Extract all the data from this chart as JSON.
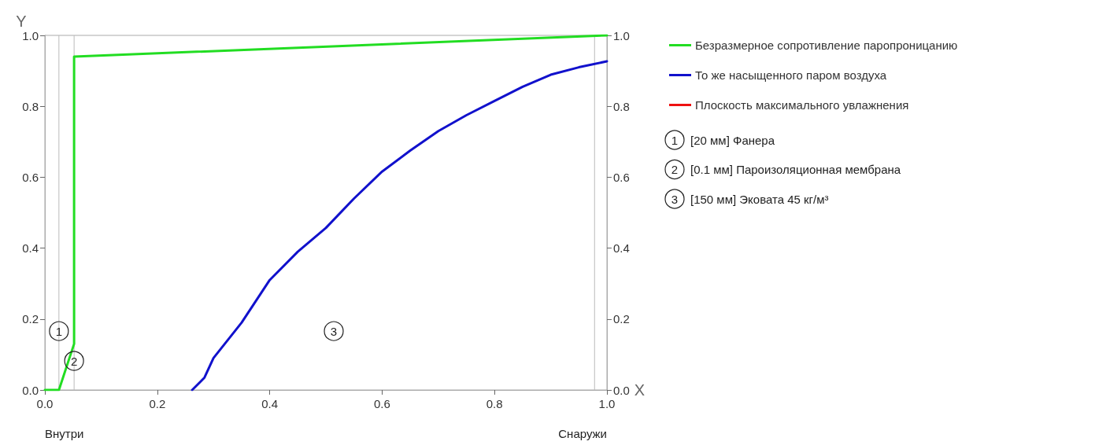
{
  "chart_data": {
    "type": "line",
    "xlabel": "X",
    "ylabel": "Y",
    "xlim": [
      0,
      1
    ],
    "xticks": [
      {
        "value": 0,
        "label": "0.0"
      },
      {
        "value": 0.2,
        "label": "0.2"
      },
      {
        "value": 0.4,
        "label": "0.4"
      },
      {
        "value": 0.6,
        "label": "0.6"
      },
      {
        "value": 0.8,
        "label": "0.8"
      },
      {
        "value": 1,
        "label": "1.0"
      }
    ],
    "ylim": [
      0,
      1
    ],
    "yticks": [
      {
        "value": 0,
        "label": "0.0"
      },
      {
        "value": 0.2,
        "label": "0.2"
      },
      {
        "value": 0.4,
        "label": "0.4"
      },
      {
        "value": 0.6,
        "label": "0.6"
      },
      {
        "value": 0.8,
        "label": "0.8"
      },
      {
        "value": 1,
        "label": "1.0"
      }
    ],
    "y2lim": [
      0,
      1
    ],
    "y2ticks": [
      {
        "value": 0,
        "label": "0.0"
      },
      {
        "value": 0.2,
        "label": "0.2"
      },
      {
        "value": 0.4,
        "label": "0.4"
      },
      {
        "value": 0.6,
        "label": "0.6"
      },
      {
        "value": 0.8,
        "label": "0.8"
      },
      {
        "value": 1,
        "label": "1.0"
      }
    ],
    "series": [
      {
        "name": "Безразмерное сопротивление паропроницанию",
        "color": "#22dd22",
        "x": [
          0,
          0.025,
          0.052,
          0.052,
          1.0
        ],
        "values": [
          0,
          0,
          0.13,
          0.94,
          1.0
        ]
      },
      {
        "name": "То же насыщенного паром воздуха",
        "color": "#1111cc",
        "x": [
          0.262,
          0.284,
          0.3,
          0.35,
          0.4,
          0.45,
          0.5,
          0.55,
          0.6,
          0.65,
          0.7,
          0.75,
          0.8,
          0.85,
          0.9,
          0.95,
          1.0
        ],
        "values": [
          0,
          0.035,
          0.09,
          0.19,
          0.31,
          0.39,
          0.457,
          0.54,
          0.616,
          0.675,
          0.73,
          0.775,
          0.815,
          0.855,
          0.889,
          0.91,
          0.927
        ]
      },
      {
        "name": "Плоскость максимального увлажнения",
        "color": "#ee1111"
      }
    ],
    "ref_lines": [
      {
        "axis": "x",
        "value": 0.025,
        "color": "#bbbbbb"
      },
      {
        "axis": "x",
        "value": 0.052,
        "color": "#bbbbbb"
      },
      {
        "axis": "x",
        "value": 0.978,
        "color": "#bbbbbb"
      }
    ],
    "annotations": [
      "Внутри",
      "Снаружи",
      "1 [20 мм] Фанера",
      "2 [0.1 мм] Пароизоляционная мембрана",
      "3 [150 мм] Эковата 45 кг/м³",
      {
        "text": "1",
        "x": 0.025,
        "y": 0.166
      },
      {
        "text": "2",
        "x": 0.052,
        "y": 0.082
      },
      {
        "text": "3",
        "x": 0.514,
        "y": 0.166
      }
    ],
    "legend": "top right",
    "marker": "none",
    "line_style": "solid",
    "grid": false
  }
}
